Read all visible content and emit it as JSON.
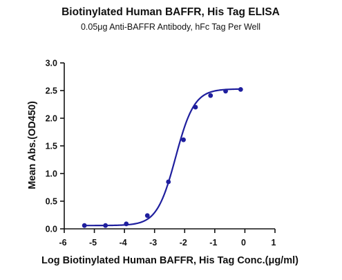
{
  "chart_data": {
    "type": "scatter",
    "title": "Biotinylated Human BAFFR, His Tag ELISA",
    "subtitle": "0.05μg Anti-BAFFR Antibody, hFc Tag Per Well",
    "xlabel": "Log Biotinylated Human BAFFR, His Tag Conc.(μg/ml)",
    "ylabel": "Mean Abs.(OD450)",
    "xlim": [
      -6,
      1
    ],
    "ylim": [
      0,
      3.0
    ],
    "xticks": [
      "-6",
      "-5",
      "-4",
      "-3",
      "-2",
      "-1",
      "0",
      "1"
    ],
    "yticks": [
      "0.0",
      "0.5",
      "1.0",
      "1.5",
      "2.0",
      "2.5",
      "3.0"
    ],
    "grid": false,
    "legend": "none",
    "series": [
      {
        "color": "#1f1f9e",
        "x": [
          -5.33,
          -4.63,
          -3.94,
          -3.24,
          -2.54,
          -2.04,
          -1.64,
          -1.14,
          -0.64,
          -0.14
        ],
        "y": [
          0.06,
          0.06,
          0.09,
          0.24,
          0.85,
          1.61,
          2.2,
          2.41,
          2.49,
          2.52
        ]
      }
    ],
    "fit_curve": {
      "color": "#1f1f9e",
      "model": "4PL",
      "bottom": 0.06,
      "top": 2.53,
      "log_ec50": -2.3,
      "hill": 1.4,
      "x_range": [
        -5.33,
        -0.14
      ]
    }
  }
}
